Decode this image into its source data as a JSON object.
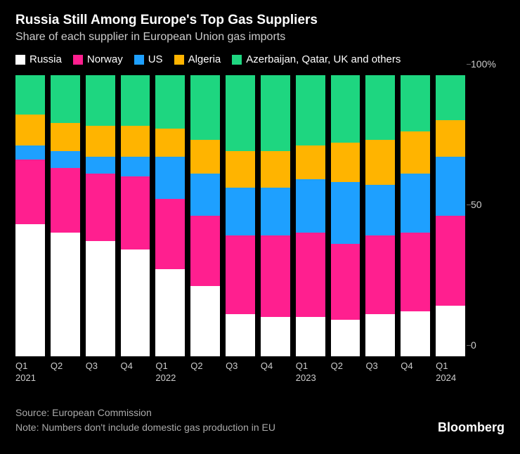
{
  "title": "Russia Still Among Europe's Top Gas Suppliers",
  "subtitle": "Share of each supplier in European Union gas imports",
  "brand": "Bloomberg",
  "source_line": "Source: European Commission",
  "note_line": "Note: Numbers don't include domestic gas production in EU",
  "chart": {
    "type": "stacked-bar",
    "background_color": "#000000",
    "text_color": "#ffffff",
    "subtext_color": "#cccccc",
    "legend": [
      {
        "key": "russia",
        "label": "Russia",
        "color": "#ffffff"
      },
      {
        "key": "norway",
        "label": "Norway",
        "color": "#ff1f8f"
      },
      {
        "key": "us",
        "label": "US",
        "color": "#1ea0ff"
      },
      {
        "key": "algeria",
        "label": "Algeria",
        "color": "#ffb400"
      },
      {
        "key": "others",
        "label": "Azerbaijan, Qatar, UK and others",
        "color": "#1ed680"
      }
    ],
    "y_ticks": [
      {
        "value": 0,
        "label": "0"
      },
      {
        "value": 50,
        "label": "50"
      },
      {
        "value": 100,
        "label": "100%"
      }
    ],
    "ylim": [
      0,
      100
    ],
    "x_labels": [
      {
        "q": "Q1",
        "year": "2021"
      },
      {
        "q": "Q2",
        "year": ""
      },
      {
        "q": "Q3",
        "year": ""
      },
      {
        "q": "Q4",
        "year": ""
      },
      {
        "q": "Q1",
        "year": "2022"
      },
      {
        "q": "Q2",
        "year": ""
      },
      {
        "q": "Q3",
        "year": ""
      },
      {
        "q": "Q4",
        "year": ""
      },
      {
        "q": "Q1",
        "year": "2023"
      },
      {
        "q": "Q2",
        "year": ""
      },
      {
        "q": "Q3",
        "year": ""
      },
      {
        "q": "Q4",
        "year": ""
      },
      {
        "q": "Q1",
        "year": "2024"
      }
    ],
    "series_order": [
      "russia",
      "norway",
      "us",
      "algeria",
      "others"
    ],
    "bars": [
      {
        "russia": 47,
        "norway": 23,
        "us": 5,
        "algeria": 11,
        "others": 14
      },
      {
        "russia": 44,
        "norway": 23,
        "us": 6,
        "algeria": 10,
        "others": 17
      },
      {
        "russia": 41,
        "norway": 24,
        "us": 6,
        "algeria": 11,
        "others": 18
      },
      {
        "russia": 38,
        "norway": 26,
        "us": 7,
        "algeria": 11,
        "others": 18
      },
      {
        "russia": 31,
        "norway": 25,
        "us": 15,
        "algeria": 10,
        "others": 19
      },
      {
        "russia": 25,
        "norway": 25,
        "us": 15,
        "algeria": 12,
        "others": 23
      },
      {
        "russia": 15,
        "norway": 28,
        "us": 17,
        "algeria": 13,
        "others": 27
      },
      {
        "russia": 14,
        "norway": 29,
        "us": 17,
        "algeria": 13,
        "others": 27
      },
      {
        "russia": 14,
        "norway": 30,
        "us": 19,
        "algeria": 12,
        "others": 25
      },
      {
        "russia": 13,
        "norway": 27,
        "us": 22,
        "algeria": 14,
        "others": 24
      },
      {
        "russia": 15,
        "norway": 28,
        "us": 18,
        "algeria": 16,
        "others": 23
      },
      {
        "russia": 16,
        "norway": 28,
        "us": 21,
        "algeria": 15,
        "others": 20
      },
      {
        "russia": 18,
        "norway": 32,
        "us": 21,
        "algeria": 13,
        "others": 16
      }
    ]
  }
}
